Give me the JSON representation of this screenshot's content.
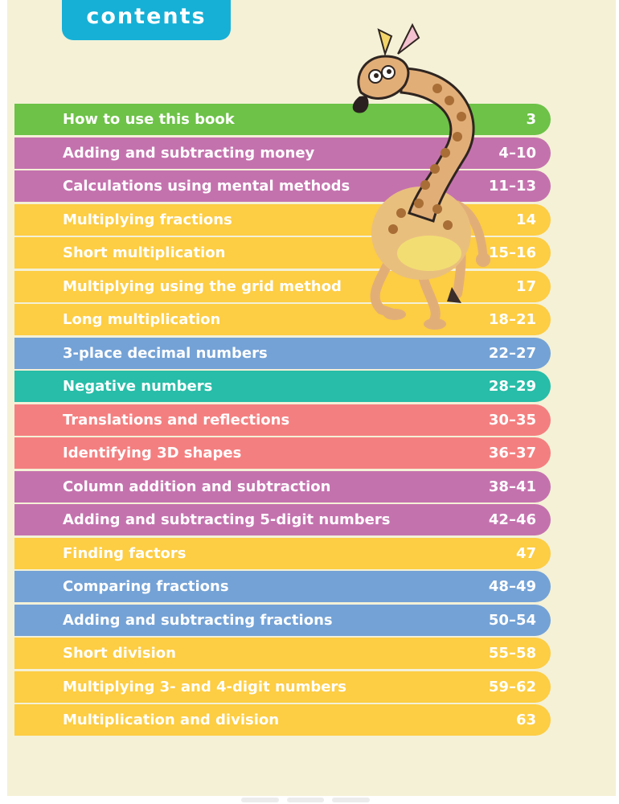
{
  "header": {
    "title": "contents"
  },
  "colors": {
    "green": "#6dc247",
    "purple": "#c472ae",
    "yellow": "#fdcd43",
    "blue": "#74a2d6",
    "teal": "#27bda8",
    "red": "#f47f80",
    "tab": "#16b0d6",
    "page": "#f4f1d7"
  },
  "toc": [
    {
      "title": "How to use this book",
      "pages": "3",
      "color": "#6dc247"
    },
    {
      "title": "Adding and subtracting money",
      "pages": "4–10",
      "color": "#c472ae"
    },
    {
      "title": "Calculations using mental methods",
      "pages": "11–13",
      "color": "#c472ae"
    },
    {
      "title": "Multiplying fractions",
      "pages": "14",
      "color": "#fdcd43"
    },
    {
      "title": "Short multiplication",
      "pages": "15–16",
      "color": "#fdcd43"
    },
    {
      "title": "Multiplying using the grid method",
      "pages": "17",
      "color": "#fdcd43"
    },
    {
      "title": "Long multiplication",
      "pages": "18–21",
      "color": "#fdcd43"
    },
    {
      "title": "3-place decimal numbers",
      "pages": "22–27",
      "color": "#74a2d6"
    },
    {
      "title": "Negative numbers",
      "pages": "28–29",
      "color": "#27bda8"
    },
    {
      "title": "Translations and reflections",
      "pages": "30–35",
      "color": "#f47f80"
    },
    {
      "title": "Identifying 3D shapes",
      "pages": "36–37",
      "color": "#f47f80"
    },
    {
      "title": "Column addition and subtraction",
      "pages": "38–41",
      "color": "#c472ae"
    },
    {
      "title": "Adding and subtracting 5-digit numbers",
      "pages": "42–46",
      "color": "#c472ae"
    },
    {
      "title": "Finding factors",
      "pages": "47",
      "color": "#fdcd43"
    },
    {
      "title": "Comparing fractions",
      "pages": "48–49",
      "color": "#74a2d6"
    },
    {
      "title": "Adding and subtracting fractions",
      "pages": "50–54",
      "color": "#74a2d6"
    },
    {
      "title": "Short division",
      "pages": "55–58",
      "color": "#fdcd43"
    },
    {
      "title": "Multiplying 3- and 4-digit numbers",
      "pages": "59–62",
      "color": "#fdcd43"
    },
    {
      "title": "Multiplication and division",
      "pages": "63",
      "color": "#fdcd43"
    }
  ],
  "illustration": {
    "icon": "giraffe-illustration"
  }
}
